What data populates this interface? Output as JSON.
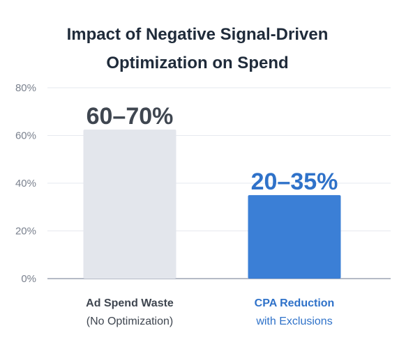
{
  "chart_data": {
    "type": "bar",
    "title_lines": [
      "Impact of Negative Signal-Driven",
      "Optimization on Spend"
    ],
    "categories": [
      "Ad Spend Waste",
      "CPA Reduction"
    ],
    "category_sublabels": [
      "(No Optimization)",
      "with Exclusions"
    ],
    "value_labels": [
      "60–70%",
      "20–35%"
    ],
    "values": [
      62.5,
      35
    ],
    "ranges": [
      [
        60,
        70
      ],
      [
        20,
        35
      ]
    ],
    "ylim": [
      0,
      80
    ],
    "yticks": [
      0,
      20,
      40,
      60,
      80
    ],
    "ytick_labels": [
      "0%",
      "20%",
      "40%",
      "60%",
      "80%"
    ],
    "grid": true,
    "colors": {
      "bar_1": "#e3e6ec",
      "bar_2": "#3b7fd6",
      "title": "#1f2b3a",
      "label_1": "#3f4650",
      "value_1": "#3f4650",
      "label_2": "#2f72c9",
      "value_2": "#2f72c9",
      "axis": "#9ba3b4",
      "grid": "#e6e9ef",
      "tick_text": "#7a818e"
    }
  }
}
